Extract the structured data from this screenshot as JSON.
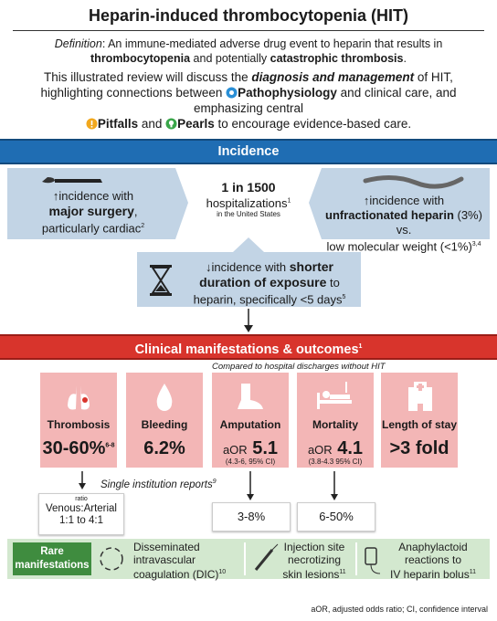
{
  "header": {
    "title": "Heparin-induced thrombocytopenia (HIT)",
    "definition": [
      "Definition",
      ": An immune-mediated adverse drug event to heparin that results in ",
      "thrombocytopenia",
      " and potentially ",
      "catastrophic thrombosis",
      "."
    ],
    "intro": [
      "This illustrated review will discuss the ",
      "diagnosis and management",
      " of HIT, highlighting connections between ",
      "Pathophysiology",
      " and clinical care, and emphasizing central ",
      "Pitfalls",
      " and ",
      "Pearls",
      " to encourage evidence-based care."
    ]
  },
  "incidence": {
    "heading": "Incidence",
    "center": {
      "main": "1 in 1500",
      "sub": "hospitalizations",
      "ref": "1",
      "note": "in the United States"
    },
    "left": [
      "↑incidence with",
      "major surgery",
      ",",
      "particularly cardiac",
      "2"
    ],
    "right": [
      "↑incidence with",
      "unfractionated heparin",
      " (3%) vs.",
      "low molecular weight (<1%)",
      "3,4"
    ],
    "bottom": [
      "↓incidence with ",
      "shorter",
      "duration of exposure",
      " to",
      "heparin, specifically <5 days",
      "5"
    ]
  },
  "clinical": {
    "heading": "Clinical manifestations & outcomes",
    "heading_ref": "1",
    "comparison_note": "Compared to hospital discharges without HIT",
    "cards": [
      {
        "label": "Thrombosis",
        "value": "30-60%",
        "ref": "6-8"
      },
      {
        "label": "Bleeding",
        "value": "6.2%"
      },
      {
        "label": "Amputation",
        "prefix": "aOR",
        "value": "5.1",
        "ci": "(4.3-6, 95% CI)"
      },
      {
        "label": "Mortality",
        "prefix": "aOR",
        "value": "4.1",
        "ci": "(3.8-4.3 95% CI)"
      },
      {
        "label": "Length of stay",
        "value": ">3 fold"
      }
    ],
    "single_institution": [
      "Single institution reports",
      "9"
    ],
    "ratio": {
      "label": "ratio",
      "text": "Venous:Arterial",
      "values": "1:1 to 4:1"
    },
    "amputation_reports": "3-8%",
    "mortality_reports": "6-50%"
  },
  "rare": {
    "heading": "Rare manifestations",
    "items": [
      [
        "Disseminated",
        "intravascular",
        "coagulation (DIC)",
        "10"
      ],
      [
        "Injection site",
        "necrotizing",
        "skin lesions",
        "11"
      ],
      [
        "Anaphylactoid",
        "reactions to",
        "IV heparin bolus",
        "11"
      ]
    ]
  },
  "footer": "aOR, adjusted odds ratio; CI, confidence interval"
}
